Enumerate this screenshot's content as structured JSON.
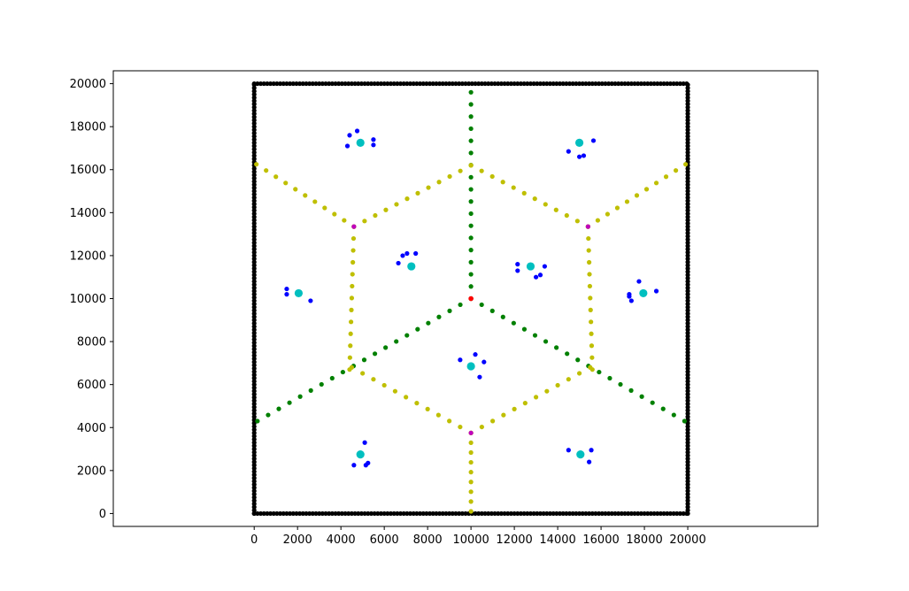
{
  "chart_data": {
    "type": "scatter",
    "title": "",
    "xlabel": "",
    "ylabel": "",
    "xlim": [
      -6500,
      26000
    ],
    "ylim": [
      -600,
      20600
    ],
    "xticks": [
      0,
      2000,
      4000,
      6000,
      8000,
      10000,
      12000,
      14000,
      16000,
      18000,
      20000
    ],
    "yticks": [
      0,
      2000,
      4000,
      6000,
      8000,
      10000,
      12000,
      14000,
      16000,
      18000,
      20000
    ],
    "grid": false,
    "legend": "none",
    "colors": {
      "boundary": "#000000",
      "green_edges": "#008000",
      "yellow_edges": "#bfbf00",
      "magenta_vertices": "#bf00bf",
      "red_vertex": "#ff0000",
      "blue_points": "#0000ff",
      "cyan_centers": "#00bfbf"
    },
    "boundary": {
      "x0": 0,
      "y0": 0,
      "x1": 20000,
      "y1": 20000
    },
    "segments": [
      {
        "color": "green_edges",
        "from": [
          10000,
          10000
        ],
        "to": [
          10000,
          19600
        ],
        "n": 17
      },
      {
        "color": "green_edges",
        "from": [
          10000,
          10000
        ],
        "to": [
          150,
          4300
        ],
        "n": 20
      },
      {
        "color": "green_edges",
        "from": [
          10000,
          10000
        ],
        "to": [
          19850,
          4300
        ],
        "n": 20
      },
      {
        "color": "yellow_edges",
        "from": [
          4600,
          13350
        ],
        "to": [
          100,
          16250
        ],
        "n": 10
      },
      {
        "color": "yellow_edges",
        "from": [
          4600,
          13350
        ],
        "to": [
          10000,
          16200
        ],
        "n": 11
      },
      {
        "color": "yellow_edges",
        "from": [
          15400,
          13350
        ],
        "to": [
          10000,
          16200
        ],
        "n": 11
      },
      {
        "color": "yellow_edges",
        "from": [
          15400,
          13350
        ],
        "to": [
          19900,
          16250
        ],
        "n": 10
      },
      {
        "color": "yellow_edges",
        "from": [
          4600,
          13350
        ],
        "to": [
          4400,
          6700
        ],
        "n": 12
      },
      {
        "color": "yellow_edges",
        "from": [
          15400,
          13350
        ],
        "to": [
          15600,
          6700
        ],
        "n": 12
      },
      {
        "color": "yellow_edges",
        "from": [
          10000,
          3750
        ],
        "to": [
          4500,
          6800
        ],
        "n": 11
      },
      {
        "color": "yellow_edges",
        "from": [
          10000,
          3750
        ],
        "to": [
          15500,
          6800
        ],
        "n": 11
      },
      {
        "color": "yellow_edges",
        "from": [
          10000,
          3750
        ],
        "to": [
          10000,
          100
        ],
        "n": 8
      }
    ],
    "magenta_vertices": [
      [
        4600,
        13350
      ],
      [
        15400,
        13350
      ],
      [
        10000,
        3750
      ]
    ],
    "red_vertex": [
      [
        10000,
        10000
      ]
    ],
    "cyan_centers": [
      [
        4900,
        17250
      ],
      [
        15000,
        17250
      ],
      [
        7250,
        11500
      ],
      [
        12750,
        11500
      ],
      [
        2050,
        10250
      ],
      [
        17950,
        10250
      ],
      [
        10000,
        6850
      ],
      [
        4900,
        2750
      ],
      [
        15050,
        2750
      ]
    ],
    "blue_points": [
      [
        4300,
        17100
      ],
      [
        4400,
        17600
      ],
      [
        4750,
        17800
      ],
      [
        5500,
        17150
      ],
      [
        5500,
        17400
      ],
      [
        14500,
        16850
      ],
      [
        15000,
        16600
      ],
      [
        15200,
        16650
      ],
      [
        15650,
        17350
      ],
      [
        6650,
        11650
      ],
      [
        6850,
        12000
      ],
      [
        7050,
        12100
      ],
      [
        7450,
        12100
      ],
      [
        12150,
        11300
      ],
      [
        12150,
        11600
      ],
      [
        13000,
        11000
      ],
      [
        13200,
        11100
      ],
      [
        13400,
        11500
      ],
      [
        1500,
        10200
      ],
      [
        1500,
        10450
      ],
      [
        2600,
        9900
      ],
      [
        17400,
        9900
      ],
      [
        17300,
        10100
      ],
      [
        17300,
        10200
      ],
      [
        17750,
        10800
      ],
      [
        18550,
        10350
      ],
      [
        9500,
        7150
      ],
      [
        10200,
        7400
      ],
      [
        10400,
        6350
      ],
      [
        10600,
        7050
      ],
      [
        4600,
        2250
      ],
      [
        5100,
        3300
      ],
      [
        5150,
        2250
      ],
      [
        5250,
        2350
      ],
      [
        14500,
        2950
      ],
      [
        15450,
        2400
      ],
      [
        15550,
        2950
      ]
    ]
  }
}
